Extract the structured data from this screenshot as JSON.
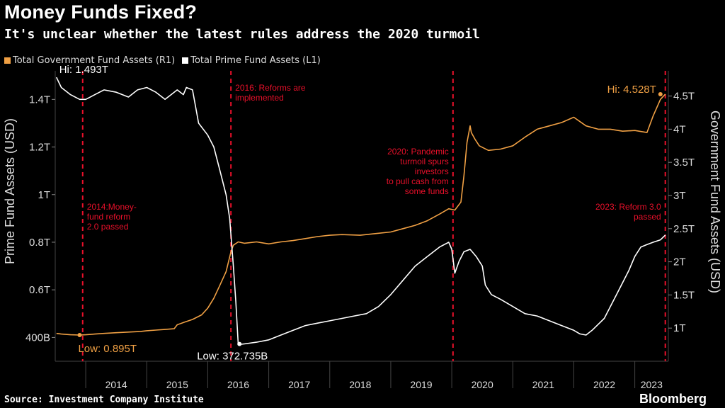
{
  "title": "Money Funds Fixed?",
  "subtitle": "It's unclear whether the latest rules address the 2020 turmoil",
  "source": "Source: Investment Company Institute",
  "brand": "Bloomberg",
  "colors": {
    "prime": "#ffffff",
    "government": "#f0a044",
    "event": "#e8102a",
    "grid": "#444444"
  },
  "chart_data": {
    "type": "line",
    "title": "Money Funds Fixed?",
    "xlabel": "",
    "ylabel_left": "Prime Fund Assets (USD)",
    "ylabel_right": "Government Fund Assets (USD)",
    "xlim": [
      2013.5,
      2023.55
    ],
    "ylim_left": [
      0.3,
      1.52
    ],
    "ylim_right": [
      0.5,
      4.88
    ],
    "x_ticks": [
      2014,
      2015,
      2016,
      2017,
      2018,
      2019,
      2020,
      2021,
      2022,
      2023
    ],
    "x_tick_labels": [
      "2014",
      "2015",
      "2016",
      "2017",
      "2018",
      "2019",
      "2020",
      "2021",
      "2022",
      "2023"
    ],
    "y_left_ticks": [
      {
        "value": 0.4,
        "label": "400B"
      },
      {
        "value": 0.6,
        "label": "0.6T"
      },
      {
        "value": 0.8,
        "label": "0.8T"
      },
      {
        "value": 1.0,
        "label": "1T"
      },
      {
        "value": 1.2,
        "label": "1.2T"
      },
      {
        "value": 1.4,
        "label": "1.4T"
      }
    ],
    "y_right_ticks": [
      {
        "value": 1.0,
        "label": "1T"
      },
      {
        "value": 1.5,
        "label": "1.5T"
      },
      {
        "value": 2.0,
        "label": "2T"
      },
      {
        "value": 2.5,
        "label": "2.5T"
      },
      {
        "value": 3.0,
        "label": "3T"
      },
      {
        "value": 3.5,
        "label": "3.5T"
      },
      {
        "value": 4.0,
        "label": "4T"
      },
      {
        "value": 4.5,
        "label": "4.5T"
      }
    ],
    "series": [
      {
        "name": "Total Government Fund Assets (R1)",
        "axis": "right",
        "x": [
          2013.52,
          2013.6,
          2013.75,
          2013.9,
          2014.0,
          2014.15,
          2014.3,
          2014.5,
          2014.7,
          2014.9,
          2015.0,
          2015.15,
          2015.3,
          2015.45,
          2015.5,
          2015.62,
          2015.75,
          2015.9,
          2016.0,
          2016.1,
          2016.2,
          2016.3,
          2016.38,
          2016.42,
          2016.5,
          2016.6,
          2016.8,
          2017.0,
          2017.2,
          2017.4,
          2017.6,
          2017.8,
          2018.0,
          2018.2,
          2018.5,
          2018.8,
          2019.0,
          2019.2,
          2019.4,
          2019.6,
          2019.8,
          2019.95,
          2020.05,
          2020.15,
          2020.2,
          2020.25,
          2020.3,
          2020.32,
          2020.38,
          2020.45,
          2020.6,
          2020.8,
          2021.0,
          2021.2,
          2021.4,
          2021.6,
          2021.8,
          2022.0,
          2022.2,
          2022.4,
          2022.6,
          2022.8,
          2023.0,
          2023.2,
          2023.3,
          2023.42,
          2023.5
        ],
        "y": [
          0.92,
          0.91,
          0.9,
          0.895,
          0.9,
          0.91,
          0.92,
          0.93,
          0.94,
          0.95,
          0.96,
          0.97,
          0.98,
          0.99,
          1.05,
          1.09,
          1.13,
          1.2,
          1.3,
          1.45,
          1.65,
          1.85,
          2.15,
          2.25,
          2.3,
          2.28,
          2.3,
          2.27,
          2.3,
          2.32,
          2.35,
          2.38,
          2.4,
          2.41,
          2.4,
          2.43,
          2.45,
          2.5,
          2.55,
          2.62,
          2.72,
          2.8,
          2.78,
          2.9,
          3.3,
          3.8,
          4.05,
          3.95,
          3.85,
          3.75,
          3.68,
          3.7,
          3.75,
          3.88,
          4.0,
          4.05,
          4.1,
          4.18,
          4.05,
          4.0,
          4.0,
          3.97,
          3.98,
          3.95,
          4.2,
          4.45,
          4.528
        ]
      },
      {
        "name": "Total Prime Fund Assets (L1)",
        "axis": "left",
        "x": [
          2013.52,
          2013.6,
          2013.75,
          2013.9,
          2014.0,
          2014.15,
          2014.3,
          2014.5,
          2014.7,
          2014.85,
          2015.0,
          2015.15,
          2015.3,
          2015.4,
          2015.5,
          2015.6,
          2015.65,
          2015.75,
          2015.85,
          2016.0,
          2016.1,
          2016.2,
          2016.3,
          2016.36,
          2016.42,
          2016.46,
          2016.5,
          2016.6,
          2016.8,
          2017.0,
          2017.2,
          2017.4,
          2017.6,
          2017.8,
          2018.0,
          2018.2,
          2018.4,
          2018.6,
          2018.8,
          2019.0,
          2019.2,
          2019.4,
          2019.6,
          2019.8,
          2019.95,
          2020.0,
          2020.05,
          2020.12,
          2020.2,
          2020.3,
          2020.4,
          2020.5,
          2020.55,
          2020.65,
          2020.8,
          2021.0,
          2021.2,
          2021.4,
          2021.6,
          2021.8,
          2022.0,
          2022.1,
          2022.2,
          2022.3,
          2022.5,
          2022.7,
          2022.9,
          2023.0,
          2023.1,
          2023.2,
          2023.3,
          2023.42,
          2023.5
        ],
        "y": [
          1.493,
          1.45,
          1.42,
          1.4,
          1.4,
          1.42,
          1.44,
          1.43,
          1.41,
          1.44,
          1.45,
          1.43,
          1.4,
          1.42,
          1.44,
          1.42,
          1.45,
          1.44,
          1.3,
          1.25,
          1.2,
          1.1,
          1.0,
          0.9,
          0.7,
          0.55,
          0.37,
          0.373,
          0.38,
          0.39,
          0.41,
          0.43,
          0.45,
          0.46,
          0.47,
          0.48,
          0.49,
          0.5,
          0.53,
          0.58,
          0.64,
          0.7,
          0.74,
          0.78,
          0.8,
          0.77,
          0.67,
          0.72,
          0.76,
          0.77,
          0.74,
          0.7,
          0.62,
          0.58,
          0.56,
          0.53,
          0.5,
          0.49,
          0.47,
          0.45,
          0.43,
          0.415,
          0.41,
          0.43,
          0.48,
          0.58,
          0.68,
          0.74,
          0.78,
          0.79,
          0.8,
          0.81,
          0.83
        ]
      }
    ],
    "events": [
      {
        "x": 2013.95,
        "label": [
          "2014:Money-",
          "fund reform",
          "2.0 passed"
        ],
        "label_side": "right"
      },
      {
        "x": 2016.38,
        "label": [
          "2016: Reforms are",
          "implemented"
        ],
        "label_side": "right"
      },
      {
        "x": 2020.02,
        "label": [
          "2020: Pandemic",
          "turmoil spurs",
          "investors",
          "to pull cash from",
          "some funds"
        ],
        "label_side": "left"
      },
      {
        "x": 2023.5,
        "label": [
          "2023: Reform 3.0",
          "passed"
        ],
        "label_side": "left"
      }
    ],
    "annotations": [
      {
        "series": 1,
        "text": "Hi: 1.493T",
        "x": 2013.52,
        "y": 1.493
      },
      {
        "series": 1,
        "text": "Low: 372.735B",
        "x": 2016.52,
        "y": 0.3727
      },
      {
        "series": 0,
        "text": "Low: 0.895T",
        "x": 2013.9,
        "y": 0.895
      },
      {
        "series": 0,
        "text": "Hi: 4.528T",
        "x": 2023.42,
        "y": 4.528
      }
    ]
  }
}
